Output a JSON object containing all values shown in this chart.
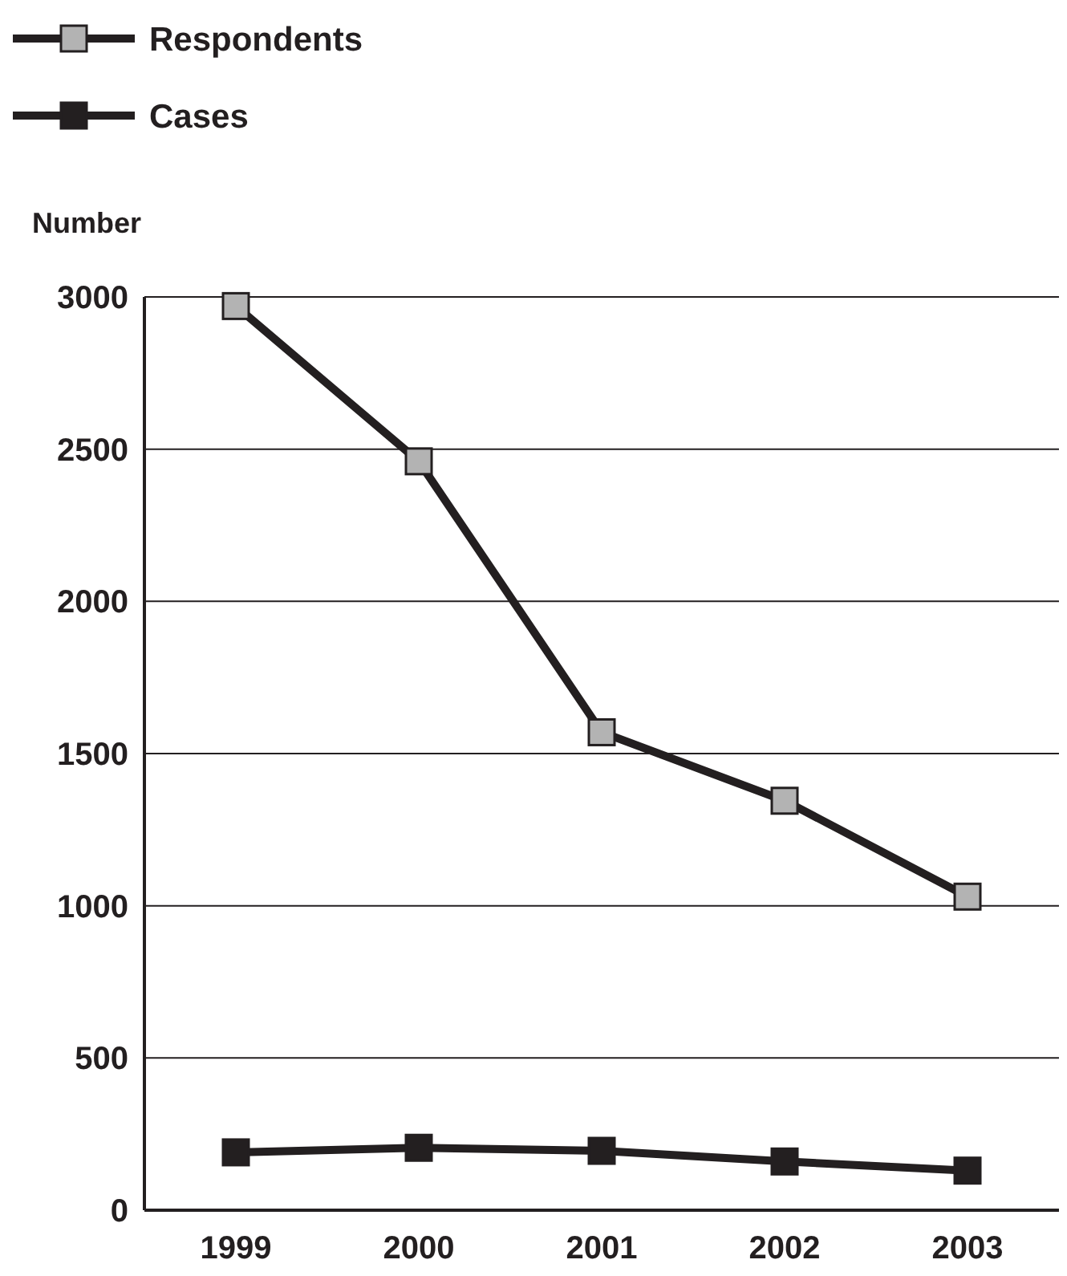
{
  "chart_data": {
    "type": "line",
    "ylabel": "Number",
    "categories": [
      "1999",
      "2000",
      "2001",
      "2002",
      "2003"
    ],
    "series": [
      {
        "name": "Respondents",
        "color": "#b3b3b3",
        "values": [
          2970,
          2460,
          1570,
          1345,
          1030
        ]
      },
      {
        "name": "Cases",
        "color": "#231f20",
        "values": [
          190,
          205,
          195,
          160,
          130
        ]
      }
    ],
    "ylim": [
      0,
      3000
    ],
    "yticks": [
      0,
      500,
      1000,
      1500,
      2000,
      2500,
      3000
    ],
    "grid": "y",
    "legend": "top left",
    "marker": "square",
    "line_style": "solid"
  }
}
